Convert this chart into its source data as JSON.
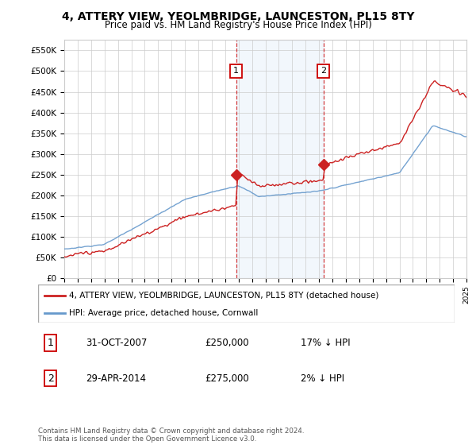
{
  "title": "4, ATTERY VIEW, YEOLMBRIDGE, LAUNCESTON, PL15 8TY",
  "subtitle": "Price paid vs. HM Land Registry's House Price Index (HPI)",
  "ylim": [
    0,
    575000
  ],
  "yticks": [
    0,
    50000,
    100000,
    150000,
    200000,
    250000,
    300000,
    350000,
    400000,
    450000,
    500000,
    550000
  ],
  "ytick_labels": [
    "£0",
    "£50K",
    "£100K",
    "£150K",
    "£200K",
    "£250K",
    "£300K",
    "£350K",
    "£400K",
    "£450K",
    "£500K",
    "£550K"
  ],
  "x_start_year": 1995,
  "x_end_year": 2025,
  "line_color_price": "#cc2222",
  "line_color_hpi": "#6699cc",
  "purchase1_date": 2007.83,
  "purchase1_price": 250000,
  "purchase1_label": "1",
  "purchase2_date": 2014.33,
  "purchase2_price": 275000,
  "purchase2_label": "2",
  "legend_price_label": "4, ATTERY VIEW, YEOLMBRIDGE, LAUNCESTON, PL15 8TY (detached house)",
  "legend_hpi_label": "HPI: Average price, detached house, Cornwall",
  "table_rows": [
    {
      "num": "1",
      "date": "31-OCT-2007",
      "price": "£250,000",
      "pct": "17% ↓ HPI"
    },
    {
      "num": "2",
      "date": "29-APR-2014",
      "price": "£275,000",
      "pct": "2% ↓ HPI"
    }
  ],
  "footnote": "Contains HM Land Registry data © Crown copyright and database right 2024.\nThis data is licensed under the Open Government Licence v3.0.",
  "background_color": "#ffffff",
  "plot_bg_color": "#ffffff",
  "grid_color": "#cccccc",
  "shade_color": "#ddeeff"
}
